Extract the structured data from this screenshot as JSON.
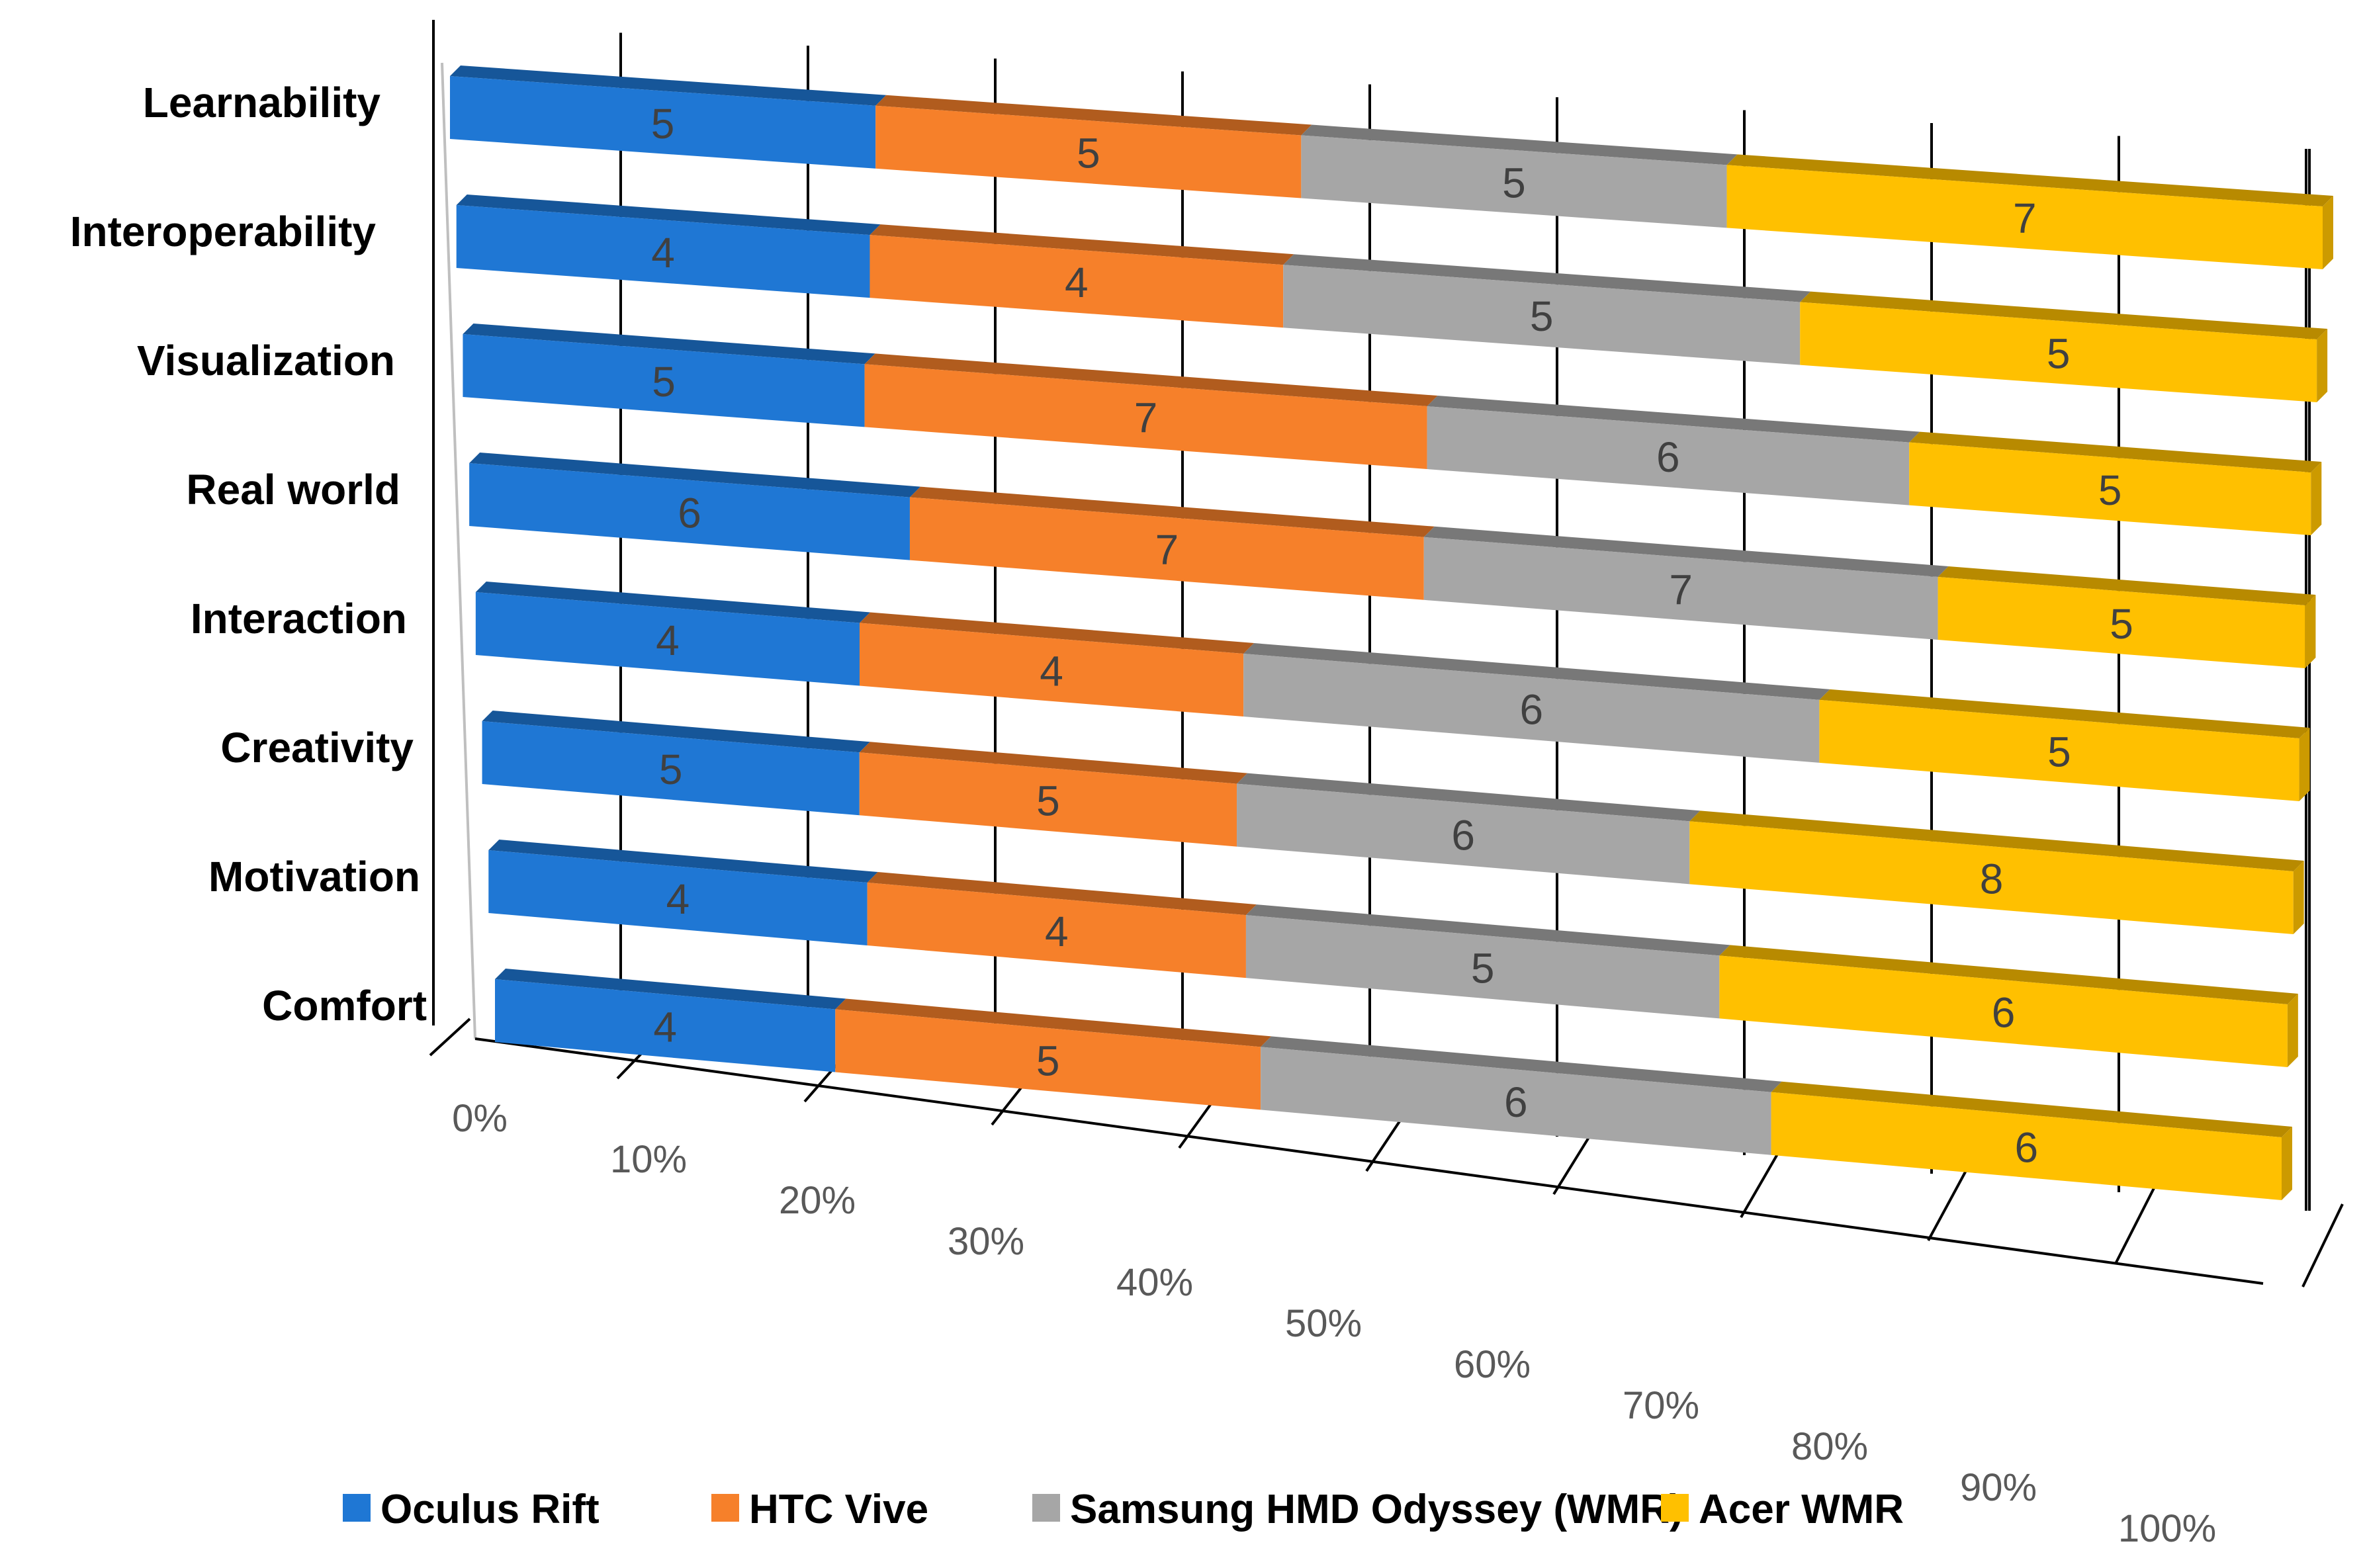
{
  "chart_data": {
    "type": "bar",
    "subtype": "100% stacked 3D horizontal bar",
    "title": "",
    "xlabel": "",
    "ylabel": "",
    "xlim": [
      0,
      100
    ],
    "x_ticks": [
      "0%",
      "10%",
      "20%",
      "30%",
      "40%",
      "50%",
      "60%",
      "70%",
      "80%",
      "90%",
      "100%"
    ],
    "categories": [
      "Learnability",
      "Interoperability",
      "Visualization",
      "Real world",
      "Interaction",
      "Creativity",
      "Motivation",
      "Comfort"
    ],
    "series": [
      {
        "name": "Oculus Rift",
        "color": "#1f77d4",
        "values": [
          5,
          4,
          5,
          6,
          4,
          5,
          4,
          4
        ]
      },
      {
        "name": "HTC Vive",
        "color": "#f6802a",
        "values": [
          5,
          4,
          7,
          7,
          4,
          5,
          4,
          5
        ]
      },
      {
        "name": "Samsung HMD Odyssey (WMR)",
        "color": "#a6a6a6",
        "values": [
          5,
          5,
          6,
          7,
          6,
          6,
          5,
          6
        ]
      },
      {
        "name": "Acer WMR",
        "color": "#ffc000",
        "values": [
          7,
          5,
          5,
          5,
          5,
          8,
          6,
          6
        ]
      }
    ],
    "gridlines": true,
    "legend_position": "bottom"
  }
}
